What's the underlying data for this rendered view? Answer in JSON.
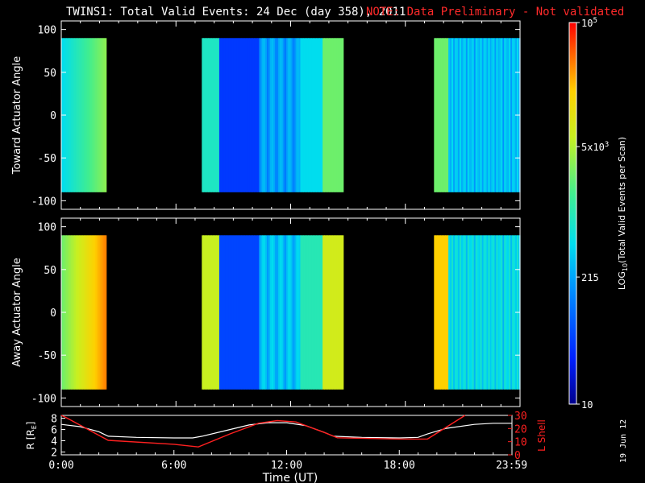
{
  "title": {
    "main": "TWINS1: Total Valid Events: 24 Dec (day 358), 2011",
    "note": "NOTE: Data Preliminary - Not validated"
  },
  "date_stamp": "19 Jun 12",
  "colors": {
    "note": "#ff2a2a",
    "background": "#000000",
    "foreground": "#ffffff",
    "lshell": "#ff2020"
  },
  "chart_data": [
    {
      "type": "heatmap",
      "name": "toward-panel",
      "ylabel": "Toward Actuator Angle",
      "ylim": [
        -110,
        110
      ],
      "yticks": [
        100,
        50,
        0,
        -50,
        -100
      ],
      "xlim": [
        0,
        24
      ],
      "data_bands_hours": [
        [
          0.0,
          2.35
        ],
        [
          7.35,
          14.75
        ],
        [
          19.5,
          24.0
        ]
      ],
      "angle_range": [
        -90,
        90
      ]
    },
    {
      "type": "heatmap",
      "name": "away-panel",
      "ylabel": "Away Actuator Angle",
      "ylim": [
        -110,
        110
      ],
      "yticks": [
        100,
        50,
        0,
        -50,
        -100
      ],
      "xlim": [
        0,
        24
      ],
      "data_bands_hours": [
        [
          0.0,
          2.35
        ],
        [
          7.35,
          14.75
        ],
        [
          19.5,
          24.0
        ]
      ],
      "angle_range": [
        -90,
        90
      ]
    },
    {
      "type": "line",
      "name": "orbit-panel",
      "xlabel": "Time (UT)",
      "xtick_labels": [
        "0:00",
        "6:00",
        "12:00",
        "18:00",
        "23:59"
      ],
      "xtick_hours": [
        0,
        6,
        12,
        18,
        23.98
      ],
      "left_axis": {
        "label": "R [RE]",
        "label_sub": "E",
        "label_pre": "R [R",
        "label_post": "]",
        "ticks": [
          2,
          4,
          6,
          8
        ],
        "ylim": [
          1.5,
          8.5
        ]
      },
      "right_axis": {
        "label": "L Shell",
        "ticks": [
          0,
          10,
          20,
          30
        ],
        "ylim": [
          0,
          30
        ]
      },
      "series": [
        {
          "name": "R",
          "axis": "left",
          "color": "#ffffff",
          "x": [
            0,
            1,
            2,
            2.5,
            4,
            6,
            7,
            7.5,
            9,
            10,
            11,
            12,
            13,
            14,
            14.5,
            16,
            18,
            19,
            19.5,
            20.5,
            22,
            23,
            24
          ],
          "y": [
            6.9,
            6.5,
            5.6,
            4.8,
            4.6,
            4.5,
            4.5,
            4.8,
            6.0,
            6.8,
            7.2,
            7.2,
            6.7,
            5.5,
            4.8,
            4.6,
            4.5,
            4.6,
            5.2,
            6.2,
            6.9,
            7.1,
            7.1
          ]
        },
        {
          "name": "L Shell",
          "axis": "right",
          "color": "#ff2020",
          "x": [
            0,
            0.3,
            2.5,
            6,
            7.3,
            9,
            10.5,
            11.5,
            12.5,
            14,
            14.7,
            18,
            19.5,
            21.5
          ],
          "y": [
            30,
            28,
            11,
            8,
            6,
            16,
            24,
            26,
            25,
            17,
            13,
            12,
            12,
            30
          ]
        }
      ]
    }
  ],
  "colorbar": {
    "label": "LOG10(Total Valid Events per Scan)",
    "label_pre": "LOG",
    "label_sub": "10",
    "label_post": "(Total Valid Events per Scan)",
    "tick_labels": [
      {
        "text": "10",
        "sup": "5",
        "base": "10",
        "value": 100000
      },
      {
        "text": "5x10",
        "sup": "3",
        "base": "5x10",
        "value": 5000
      },
      {
        "text": "215",
        "sup": "",
        "base": "215",
        "value": 215
      },
      {
        "text": "10",
        "sup": "",
        "base": "10",
        "value": 10
      }
    ],
    "range": [
      10,
      100000
    ],
    "scale": "log"
  }
}
